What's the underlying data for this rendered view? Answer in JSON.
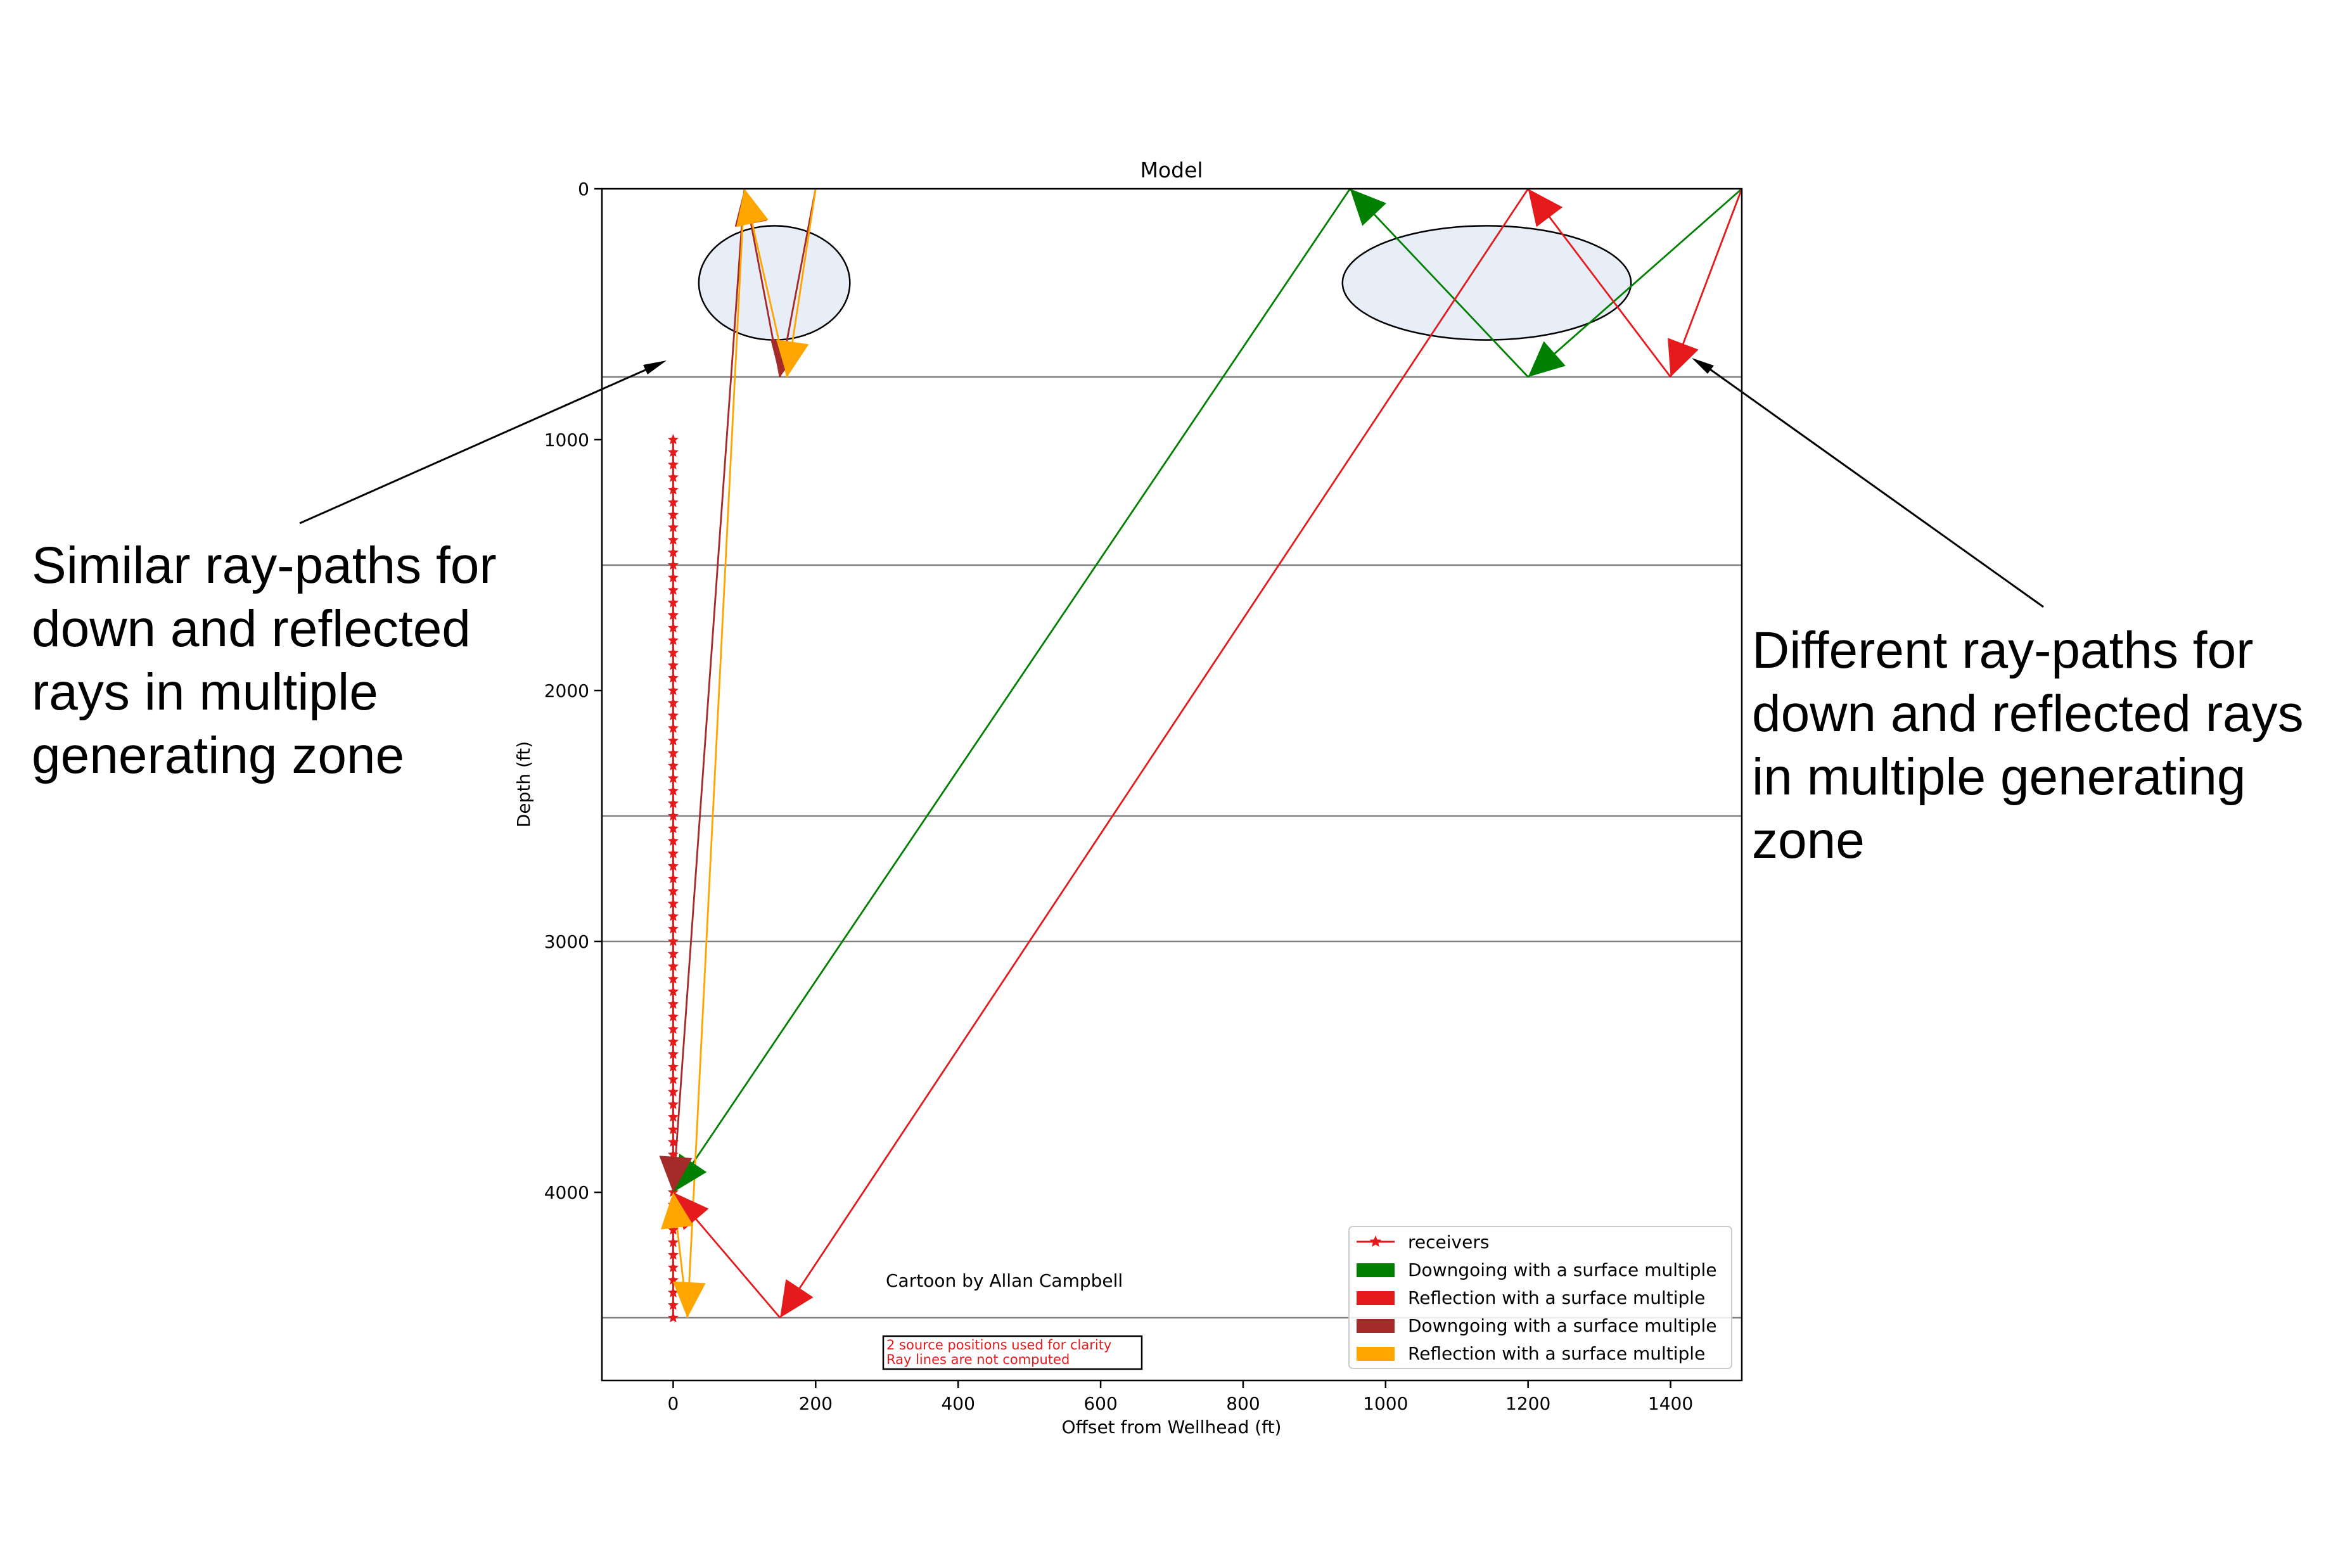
{
  "chart_data": {
    "type": "line",
    "title": "Model",
    "xlabel": "Offset from Wellhead (ft)",
    "ylabel": "Depth (ft)",
    "xlim": [
      -100,
      1500
    ],
    "ylim": [
      4750,
      0
    ],
    "y_inverted": true,
    "xticks": [
      0,
      200,
      400,
      600,
      800,
      1000,
      1200,
      1400
    ],
    "yticks": [
      0,
      1000,
      2000,
      3000,
      4000
    ],
    "grid": false,
    "legend_position": "lower-right",
    "layer_boundaries": [
      750,
      1500,
      2500,
      3000,
      4500
    ],
    "receivers": {
      "name": "receivers",
      "color": "#e41a1c",
      "marker": "star",
      "x": 0,
      "depth_from": 1000,
      "depth_to": 4500,
      "spacing": 50
    },
    "series": [
      {
        "name": "Downgoing with a surface multiple",
        "color": "#008000",
        "points": [
          [
            1500,
            0
          ],
          [
            1200,
            750
          ],
          [
            950,
            0
          ],
          [
            0,
            4000
          ]
        ]
      },
      {
        "name": "Reflection with a surface multiple",
        "color": "#e41a1c",
        "points": [
          [
            1500,
            0
          ],
          [
            1400,
            750
          ],
          [
            1200,
            0
          ],
          [
            150,
            4500
          ],
          [
            0,
            4000
          ]
        ]
      },
      {
        "name": "Downgoing with a surface multiple",
        "color": "#a52a2a",
        "points": [
          [
            200,
            0
          ],
          [
            150,
            750
          ],
          [
            100,
            0
          ],
          [
            0,
            4000
          ]
        ]
      },
      {
        "name": "Reflection with a surface multiple",
        "color": "#ffa500",
        "points": [
          [
            200,
            0
          ],
          [
            160,
            750
          ],
          [
            100,
            0
          ],
          [
            20,
            4500
          ],
          [
            0,
            4000
          ]
        ]
      }
    ],
    "zones": [
      {
        "cx": 142,
        "cy": 375,
        "rx": 212,
        "ry": 455
      },
      {
        "cx": 1142,
        "cy": 375,
        "rx": 405,
        "ry": 455
      }
    ],
    "annotations": {
      "credit": "Cartoon by Allan Campbell",
      "note_lines": [
        "2 source positions used for clarity",
        "Ray lines are not computed"
      ]
    }
  },
  "callouts": {
    "left": {
      "lines": [
        "Similar ray-paths for",
        "down and reflected",
        "rays in multiple",
        "generating zone"
      ]
    },
    "right": {
      "lines": [
        "Different ray-paths for",
        "down and reflected rays",
        "in multiple generating",
        "zone"
      ]
    }
  },
  "legend": {
    "entries": [
      {
        "label": "receivers",
        "color": "#e41a1c",
        "kind": "line-marker"
      },
      {
        "label": "Downgoing with a surface multiple",
        "color": "#008000",
        "kind": "patch"
      },
      {
        "label": "Reflection with a surface multiple",
        "color": "#e41a1c",
        "kind": "patch"
      },
      {
        "label": "Downgoing with a surface multiple",
        "color": "#a52a2a",
        "kind": "patch"
      },
      {
        "label": "Reflection with a surface multiple",
        "color": "#ffa500",
        "kind": "patch"
      }
    ]
  },
  "colors": {
    "zone_fill": "#e8eef8",
    "layer_line": "#808080",
    "axis": "#000000",
    "note_text": "#e41a1c"
  }
}
